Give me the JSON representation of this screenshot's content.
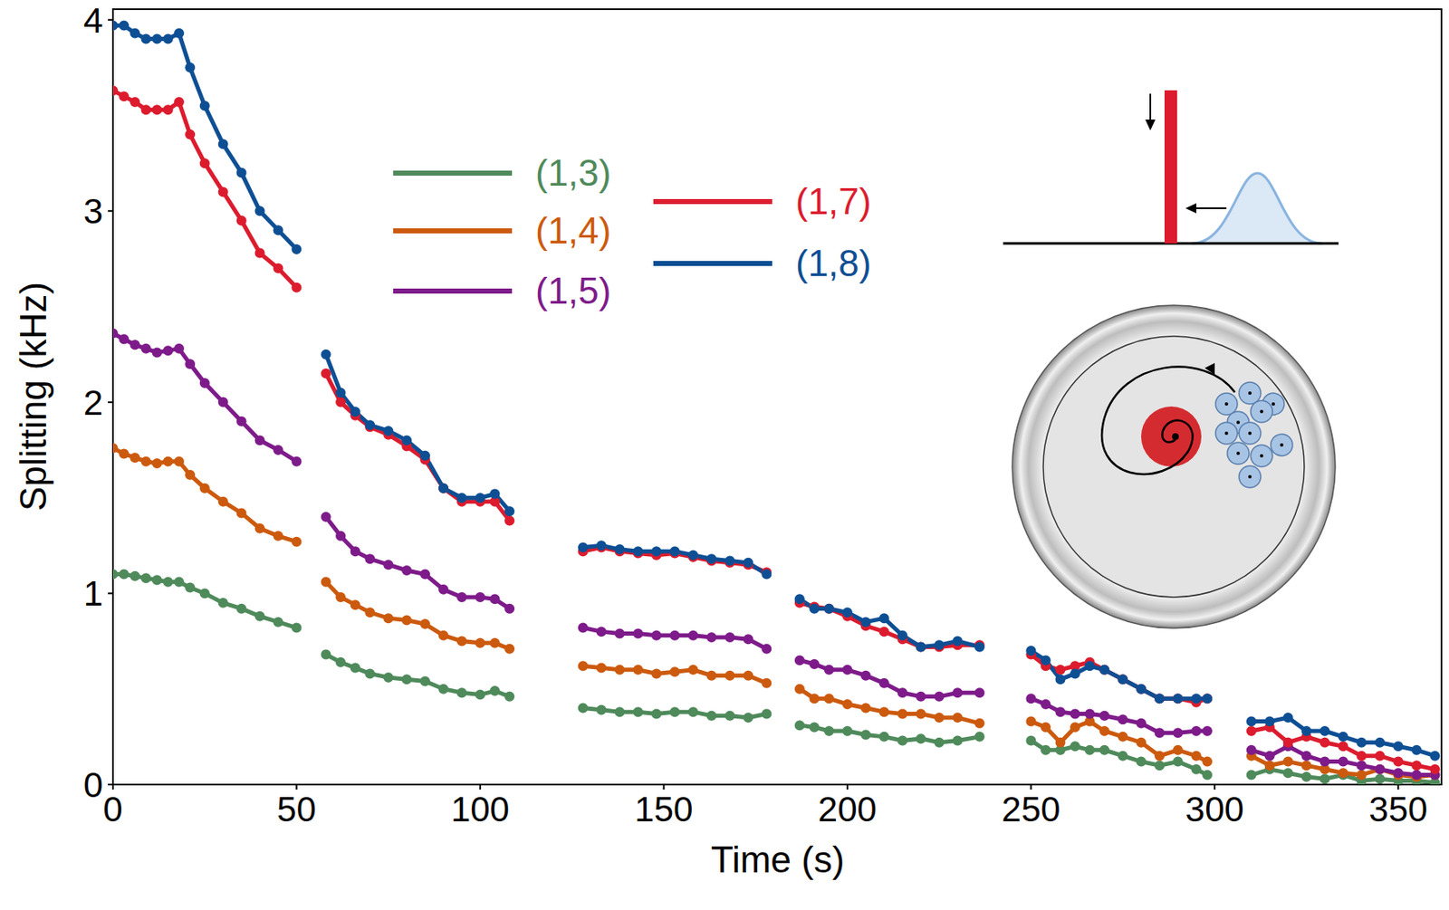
{
  "chart_data": {
    "type": "line",
    "x_label": "Time (s)",
    "y_label": "Splitting (kHz)",
    "xlim": [
      0,
      362
    ],
    "xticks": [
      0,
      50,
      100,
      150,
      200,
      250,
      300,
      350
    ],
    "ylim": [
      0,
      4.06
    ],
    "yticks": [
      0,
      1,
      2,
      3,
      4
    ],
    "grid": false,
    "legend": "top",
    "marker": "circle",
    "line_style": "solid",
    "x": [
      0,
      3,
      6,
      9,
      12,
      15,
      18,
      21,
      25,
      30,
      35,
      40,
      45,
      50,
      54,
      58,
      62,
      66,
      70,
      75,
      80,
      85,
      90,
      95,
      100,
      104,
      108,
      118,
      128,
      133,
      138,
      143,
      148,
      153,
      158,
      163,
      168,
      173,
      178,
      182,
      187,
      191,
      195,
      200,
      205,
      210,
      215,
      220,
      225,
      230,
      236,
      243,
      250,
      254,
      258,
      262,
      266,
      270,
      275,
      280,
      285,
      290,
      295,
      298,
      304,
      310,
      315,
      320,
      325,
      330,
      335,
      340,
      345,
      350,
      355,
      360
    ],
    "series": [
      {
        "name": "(1,3)",
        "color": "#4f8a5b",
        "values": [
          1.1,
          1.1,
          1.09,
          1.08,
          1.07,
          1.06,
          1.06,
          1.03,
          1.0,
          0.95,
          0.92,
          0.88,
          0.85,
          0.82,
          null,
          0.68,
          0.64,
          0.61,
          0.58,
          0.56,
          0.55,
          0.54,
          0.5,
          0.48,
          0.47,
          0.49,
          0.46,
          null,
          0.4,
          0.39,
          0.38,
          0.38,
          0.37,
          0.38,
          0.38,
          0.36,
          0.36,
          0.35,
          0.37,
          null,
          0.31,
          0.3,
          0.28,
          0.28,
          0.26,
          0.25,
          0.23,
          0.24,
          0.22,
          0.23,
          0.25,
          null,
          0.23,
          0.18,
          0.18,
          0.2,
          0.18,
          0.18,
          0.15,
          0.12,
          0.1,
          0.12,
          0.08,
          0.05,
          null,
          0.05,
          0.08,
          0.06,
          0.04,
          0.03,
          0.05,
          0.02,
          0.03,
          0.02,
          0.02,
          0.01
        ]
      },
      {
        "name": "(1,4)",
        "color": "#cc5a0e",
        "values": [
          1.76,
          1.73,
          1.71,
          1.69,
          1.68,
          1.69,
          1.69,
          1.62,
          1.55,
          1.48,
          1.42,
          1.34,
          1.3,
          1.27,
          null,
          1.06,
          0.98,
          0.94,
          0.9,
          0.87,
          0.86,
          0.84,
          0.78,
          0.75,
          0.74,
          0.74,
          0.71,
          null,
          0.62,
          0.61,
          0.6,
          0.6,
          0.58,
          0.59,
          0.6,
          0.57,
          0.57,
          0.57,
          0.53,
          null,
          0.5,
          0.45,
          0.45,
          0.42,
          0.4,
          0.38,
          0.37,
          0.37,
          0.35,
          0.35,
          0.32,
          null,
          0.33,
          0.3,
          0.22,
          0.3,
          0.33,
          0.28,
          0.25,
          0.22,
          0.15,
          0.18,
          0.15,
          0.12,
          null,
          0.15,
          0.1,
          0.12,
          0.1,
          0.08,
          0.06,
          0.05,
          0.08,
          0.05,
          0.04,
          0.05
        ]
      },
      {
        "name": "(1,5)",
        "color": "#7e1b8a",
        "values": [
          2.36,
          2.33,
          2.3,
          2.28,
          2.26,
          2.27,
          2.28,
          2.2,
          2.1,
          2.0,
          1.9,
          1.8,
          1.75,
          1.69,
          null,
          1.4,
          1.3,
          1.22,
          1.18,
          1.15,
          1.12,
          1.1,
          1.02,
          0.98,
          0.98,
          0.97,
          0.92,
          null,
          0.82,
          0.8,
          0.79,
          0.79,
          0.78,
          0.78,
          0.78,
          0.77,
          0.77,
          0.76,
          0.71,
          null,
          0.65,
          0.63,
          0.6,
          0.6,
          0.57,
          0.53,
          0.48,
          0.46,
          0.46,
          0.48,
          0.48,
          null,
          0.45,
          0.42,
          0.38,
          0.37,
          0.37,
          0.36,
          0.34,
          0.32,
          0.27,
          0.27,
          0.28,
          0.28,
          null,
          0.18,
          0.15,
          0.2,
          0.15,
          0.12,
          0.12,
          0.1,
          0.08,
          0.06,
          0.05,
          0.05
        ]
      },
      {
        "name": "(1,7)",
        "color": "#dc1c2e",
        "values": [
          3.63,
          3.6,
          3.57,
          3.53,
          3.53,
          3.53,
          3.57,
          3.4,
          3.25,
          3.1,
          2.95,
          2.78,
          2.7,
          2.6,
          null,
          2.15,
          2.0,
          1.93,
          1.87,
          1.83,
          1.77,
          1.7,
          1.55,
          1.48,
          1.48,
          1.48,
          1.38,
          null,
          1.22,
          1.24,
          1.22,
          1.21,
          1.2,
          1.21,
          1.19,
          1.17,
          1.16,
          1.15,
          1.11,
          null,
          0.95,
          0.93,
          0.92,
          0.88,
          0.83,
          0.8,
          0.76,
          0.72,
          0.72,
          0.73,
          0.73,
          null,
          0.68,
          0.62,
          0.6,
          0.62,
          0.64,
          0.6,
          0.55,
          0.5,
          0.45,
          0.45,
          0.43,
          0.45,
          null,
          0.28,
          0.3,
          0.22,
          0.25,
          0.22,
          0.2,
          0.15,
          0.15,
          0.12,
          0.1,
          0.08
        ]
      },
      {
        "name": "(1,8)",
        "color": "#0e4f94",
        "values": [
          3.97,
          3.97,
          3.93,
          3.9,
          3.9,
          3.9,
          3.93,
          3.75,
          3.55,
          3.35,
          3.2,
          3.0,
          2.9,
          2.8,
          null,
          2.25,
          2.05,
          1.95,
          1.88,
          1.85,
          1.8,
          1.72,
          1.55,
          1.5,
          1.5,
          1.52,
          1.43,
          null,
          1.24,
          1.25,
          1.23,
          1.22,
          1.22,
          1.22,
          1.2,
          1.18,
          1.17,
          1.16,
          1.1,
          null,
          0.97,
          0.92,
          0.92,
          0.9,
          0.85,
          0.87,
          0.78,
          0.72,
          0.73,
          0.75,
          0.72,
          null,
          0.7,
          0.65,
          0.55,
          0.58,
          0.62,
          0.6,
          0.55,
          0.5,
          0.45,
          0.45,
          0.45,
          0.45,
          null,
          0.33,
          0.33,
          0.35,
          0.28,
          0.28,
          0.25,
          0.22,
          0.22,
          0.2,
          0.18,
          0.15
        ]
      }
    ]
  }
}
